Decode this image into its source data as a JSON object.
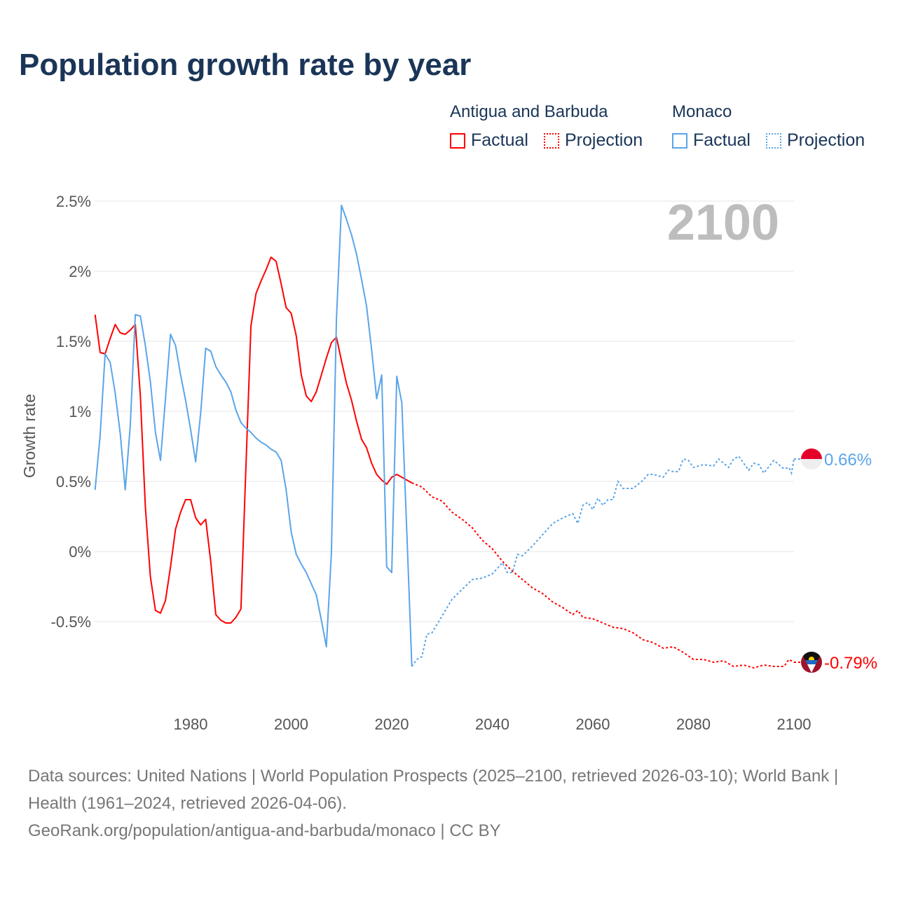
{
  "title": "Population growth rate by year",
  "legend": {
    "groups": [
      {
        "name": "Antigua and Barbuda",
        "factual": "Factual",
        "projection": "Projection",
        "color": "#ff0000"
      },
      {
        "name": "Monaco",
        "factual": "Factual",
        "projection": "Projection",
        "color": "#5aa5e8"
      }
    ]
  },
  "chart_data": {
    "type": "line",
    "title": "Population growth rate by year",
    "ylabel": "Growth rate",
    "xlabel": "",
    "year_watermark": "2100",
    "xlim": [
      1961,
      2100
    ],
    "ylim": [
      -1.0,
      2.6
    ],
    "x_ticks": [
      1980,
      2000,
      2020,
      2040,
      2060,
      2080,
      2100
    ],
    "y_ticks": [
      {
        "v": 2.5,
        "label": "2.5%"
      },
      {
        "v": 2,
        "label": "2%"
      },
      {
        "v": 1.5,
        "label": "1.5%"
      },
      {
        "v": 1,
        "label": "1%"
      },
      {
        "v": 0.5,
        "label": "0.5%"
      },
      {
        "v": 0,
        "label": "0%"
      },
      {
        "v": -0.5,
        "label": "-0.5%"
      }
    ],
    "grid": true,
    "series": [
      {
        "name": "Antigua and Barbuda",
        "color": "#ff0000",
        "end_label": "-0.79%",
        "factual": {
          "start_year": 1961,
          "values": [
            1.69,
            1.42,
            1.41,
            1.52,
            1.62,
            1.56,
            1.55,
            1.58,
            1.62,
            1.11,
            0.32,
            -0.18,
            -0.42,
            -0.44,
            -0.35,
            -0.11,
            0.16,
            0.28,
            0.37,
            0.37,
            0.24,
            0.19,
            0.23,
            -0.07,
            -0.45,
            -0.49,
            -0.51,
            -0.51,
            -0.47,
            -0.41,
            0.6,
            1.61,
            1.84,
            1.93,
            2.01,
            2.1,
            2.07,
            1.91,
            1.74,
            1.7,
            1.54,
            1.26,
            1.11,
            1.07,
            1.14,
            1.26,
            1.38,
            1.49,
            1.53,
            1.36,
            1.2,
            1.08,
            0.93,
            0.8,
            0.74,
            0.63,
            0.55,
            0.51,
            0.48,
            0.53,
            0.55,
            0.53,
            0.51,
            0.49
          ]
        },
        "projection": [
          [
            2024,
            0.49
          ],
          [
            2026,
            0.46
          ],
          [
            2028,
            0.39
          ],
          [
            2030,
            0.36
          ],
          [
            2032,
            0.28
          ],
          [
            2034,
            0.23
          ],
          [
            2036,
            0.17
          ],
          [
            2038,
            0.08
          ],
          [
            2040,
            0.02
          ],
          [
            2042,
            -0.07
          ],
          [
            2044,
            -0.14
          ],
          [
            2046,
            -0.2
          ],
          [
            2048,
            -0.26
          ],
          [
            2050,
            -0.3
          ],
          [
            2052,
            -0.36
          ],
          [
            2054,
            -0.4
          ],
          [
            2056,
            -0.45
          ],
          [
            2057,
            -0.42
          ],
          [
            2058,
            -0.47
          ],
          [
            2060,
            -0.48
          ],
          [
            2062,
            -0.51
          ],
          [
            2064,
            -0.54
          ],
          [
            2066,
            -0.55
          ],
          [
            2068,
            -0.58
          ],
          [
            2070,
            -0.63
          ],
          [
            2072,
            -0.65
          ],
          [
            2074,
            -0.69
          ],
          [
            2076,
            -0.68
          ],
          [
            2078,
            -0.72
          ],
          [
            2080,
            -0.77
          ],
          [
            2082,
            -0.77
          ],
          [
            2084,
            -0.79
          ],
          [
            2086,
            -0.78
          ],
          [
            2088,
            -0.82
          ],
          [
            2090,
            -0.81
          ],
          [
            2092,
            -0.83
          ],
          [
            2094,
            -0.81
          ],
          [
            2096,
            -0.82
          ],
          [
            2098,
            -0.82
          ],
          [
            2099,
            -0.77
          ],
          [
            2100,
            -0.79
          ]
        ]
      },
      {
        "name": "Monaco",
        "color": "#5aa5e8",
        "end_label": "0.66%",
        "factual": {
          "start_year": 1961,
          "values": [
            0.44,
            0.83,
            1.41,
            1.35,
            1.13,
            0.84,
            0.44,
            0.9,
            1.69,
            1.68,
            1.47,
            1.21,
            0.85,
            0.65,
            1.09,
            1.55,
            1.47,
            1.26,
            1.08,
            0.87,
            0.64,
            0.99,
            1.45,
            1.43,
            1.32,
            1.26,
            1.21,
            1.14,
            1.01,
            0.92,
            0.88,
            0.85,
            0.81,
            0.78,
            0.76,
            0.73,
            0.71,
            0.65,
            0.44,
            0.14,
            -0.02,
            -0.09,
            -0.15,
            -0.23,
            -0.31,
            -0.49,
            -0.68,
            -0.01,
            1.66,
            2.47,
            2.37,
            2.26,
            2.12,
            1.94,
            1.75,
            1.44,
            1.09,
            1.26,
            -0.11,
            -0.15,
            1.25,
            1.06,
            0.14,
            -0.82
          ]
        },
        "projection": [
          [
            2024,
            -0.82
          ],
          [
            2025,
            -0.77
          ],
          [
            2026,
            -0.75
          ],
          [
            2027,
            -0.59
          ],
          [
            2028,
            -0.58
          ],
          [
            2030,
            -0.46
          ],
          [
            2032,
            -0.34
          ],
          [
            2034,
            -0.27
          ],
          [
            2036,
            -0.2
          ],
          [
            2038,
            -0.19
          ],
          [
            2040,
            -0.16
          ],
          [
            2042,
            -0.08
          ],
          [
            2043,
            -0.15
          ],
          [
            2044,
            -0.15
          ],
          [
            2045,
            -0.02
          ],
          [
            2046,
            -0.03
          ],
          [
            2048,
            0.04
          ],
          [
            2050,
            0.12
          ],
          [
            2052,
            0.2
          ],
          [
            2054,
            0.24
          ],
          [
            2056,
            0.27
          ],
          [
            2057,
            0.2
          ],
          [
            2058,
            0.33
          ],
          [
            2059,
            0.35
          ],
          [
            2060,
            0.3
          ],
          [
            2061,
            0.38
          ],
          [
            2062,
            0.33
          ],
          [
            2063,
            0.37
          ],
          [
            2064,
            0.37
          ],
          [
            2065,
            0.5
          ],
          [
            2066,
            0.45
          ],
          [
            2068,
            0.45
          ],
          [
            2070,
            0.51
          ],
          [
            2071,
            0.55
          ],
          [
            2072,
            0.55
          ],
          [
            2074,
            0.53
          ],
          [
            2075,
            0.58
          ],
          [
            2076,
            0.57
          ],
          [
            2077,
            0.57
          ],
          [
            2078,
            0.66
          ],
          [
            2079,
            0.65
          ],
          [
            2080,
            0.6
          ],
          [
            2082,
            0.62
          ],
          [
            2084,
            0.61
          ],
          [
            2085,
            0.66
          ],
          [
            2087,
            0.6
          ],
          [
            2088,
            0.66
          ],
          [
            2089,
            0.68
          ],
          [
            2091,
            0.58
          ],
          [
            2092,
            0.63
          ],
          [
            2093,
            0.62
          ],
          [
            2094,
            0.56
          ],
          [
            2096,
            0.65
          ],
          [
            2097,
            0.62
          ],
          [
            2098,
            0.59
          ],
          [
            2099,
            0.6
          ],
          [
            2099.5,
            0.56
          ],
          [
            2100,
            0.66
          ]
        ]
      }
    ]
  },
  "footer": {
    "line1": "Data sources: United Nations | World Population Prospects (2025–2100, retrieved 2026-03-10); World Bank | Health (1961–2024, retrieved 2026-04-06).",
    "line2": "GeoRank.org/population/antigua-and-barbuda/monaco | CC BY"
  }
}
